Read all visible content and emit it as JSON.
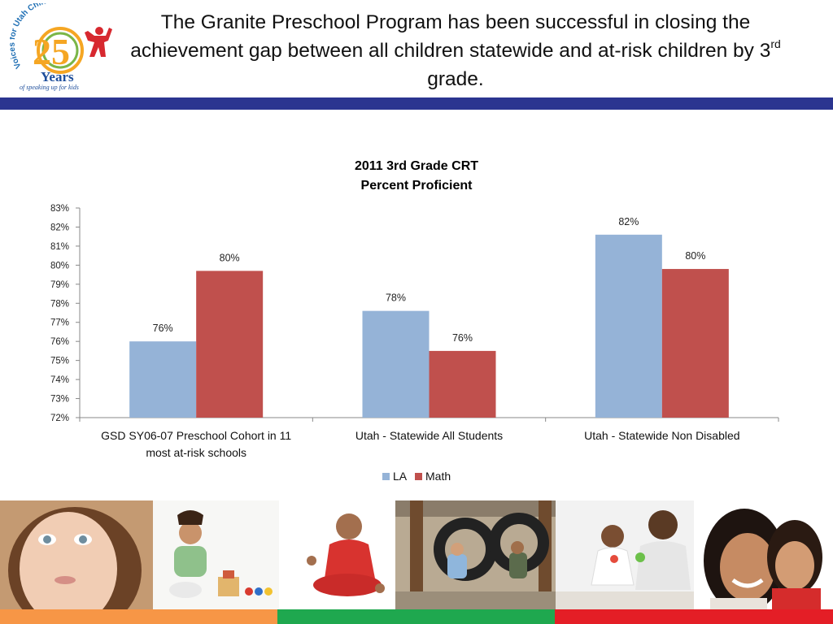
{
  "logo": {
    "arc_text": "Voices for Utah Children",
    "number": "25",
    "word": "Years",
    "tagline": "of speaking up for kids"
  },
  "slide": {
    "title_main": "The Granite Preschool Program has been successful in closing the achievement gap between all children statewide and at-risk children by 3",
    "title_sup": "rd",
    "title_end": " grade."
  },
  "chart_data": {
    "type": "bar",
    "title": "2011 3rd Grade CRT",
    "subtitle": "Percent Proficient",
    "categories": [
      [
        "GSD SY06-07 Preschool Cohort in 11",
        "most at-risk schools"
      ],
      [
        "Utah - Statewide All Students"
      ],
      [
        "Utah - Statewide Non Disabled"
      ]
    ],
    "series": [
      {
        "name": "LA",
        "values": [
          76.0,
          77.6,
          81.6
        ],
        "labels": [
          "76%",
          "78%",
          "82%"
        ],
        "color": "#95b3d7"
      },
      {
        "name": "Math",
        "values": [
          79.7,
          75.5,
          79.8
        ],
        "labels": [
          "80%",
          "76%",
          "80%"
        ],
        "color": "#c0504d"
      }
    ],
    "ylim": [
      72,
      83
    ],
    "y_ticks": [
      "72%",
      "73%",
      "74%",
      "75%",
      "76%",
      "77%",
      "78%",
      "79%",
      "80%",
      "81%",
      "82%",
      "83%"
    ],
    "legend_position": "bottom",
    "grid": false
  },
  "photos": [
    {
      "name": "child-closeup-photo"
    },
    {
      "name": "toddler-playing-blocks-photo"
    },
    {
      "name": "baby-sitting-red-photo"
    },
    {
      "name": "children-tire-swing-photo"
    },
    {
      "name": "father-daughter-playing-photo"
    },
    {
      "name": "mother-daughter-hug-photo"
    }
  ],
  "colors": {
    "band_blue": "#2b3590",
    "bottom_orange": "#f79646",
    "bottom_green": "#1fa84f",
    "bottom_red": "#e41e26"
  }
}
